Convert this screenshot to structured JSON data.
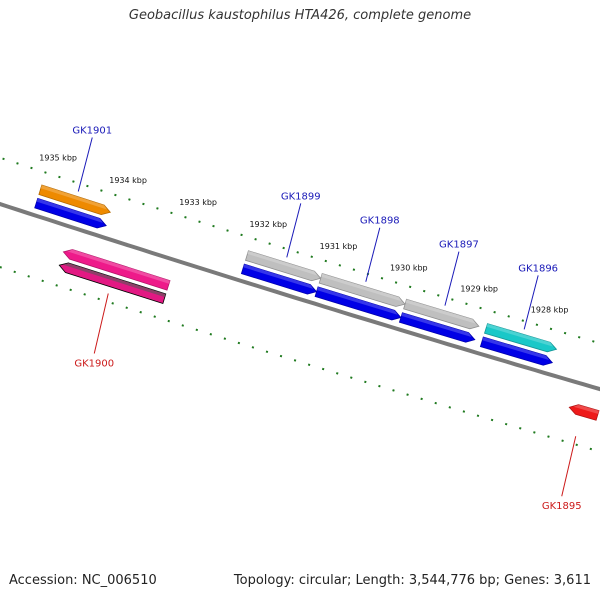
{
  "title": "Geobacillus kaustophilus HTA426, complete genome",
  "footer": {
    "accession": "Accession: NC_006510",
    "summary": "Topology: circular; Length: 3,544,776 bp; Genes: 3,611"
  },
  "colors": {
    "backbone": "#7a7a7a",
    "ticks": "#1f7a1f",
    "cds_forward": "#0000e6",
    "forward_label": "#1a1ab8",
    "reverse_label": "#cc1a1a"
  },
  "ruler": {
    "labels": [
      {
        "text": "1935 kbp",
        "kbp": 1935
      },
      {
        "text": "1934 kbp",
        "kbp": 1934
      },
      {
        "text": "1933 kbp",
        "kbp": 1933
      },
      {
        "text": "1932 kbp",
        "kbp": 1932
      },
      {
        "text": "1931 kbp",
        "kbp": 1931
      },
      {
        "text": "1930 kbp",
        "kbp": 1930
      },
      {
        "text": "1929 kbp",
        "kbp": 1929
      },
      {
        "text": "1928 kbp",
        "kbp": 1928
      }
    ]
  },
  "genes": [
    {
      "name": "GK1901",
      "strand": "+",
      "color": "#ee8a00",
      "start_kbp": 1935.05,
      "end_kbp": 1934.05,
      "has_cds": true
    },
    {
      "name": "GK1900",
      "strand": "-",
      "color": "#ee1a8a",
      "start_kbp": 1934.5,
      "end_kbp": 1933.0,
      "has_cds": true
    },
    {
      "name": "GK1899",
      "strand": "+",
      "color": "#bfbfbf",
      "start_kbp": 1932.1,
      "end_kbp": 1931.05,
      "has_cds": true
    },
    {
      "name": "GK1898",
      "strand": "+",
      "color": "#bfbfbf",
      "start_kbp": 1931.05,
      "end_kbp": 1929.85,
      "has_cds": true
    },
    {
      "name": "GK1897",
      "strand": "+",
      "color": "#bfbfbf",
      "start_kbp": 1929.85,
      "end_kbp": 1928.8,
      "has_cds": true
    },
    {
      "name": "GK1896",
      "strand": "+",
      "color": "#1ac8c8",
      "start_kbp": 1928.7,
      "end_kbp": 1927.7,
      "has_cds": true
    },
    {
      "name": "GK1895",
      "strand": "-",
      "color": "#ee1a1a",
      "start_kbp": 1927.3,
      "end_kbp": 1926.9,
      "has_cds": false
    }
  ]
}
